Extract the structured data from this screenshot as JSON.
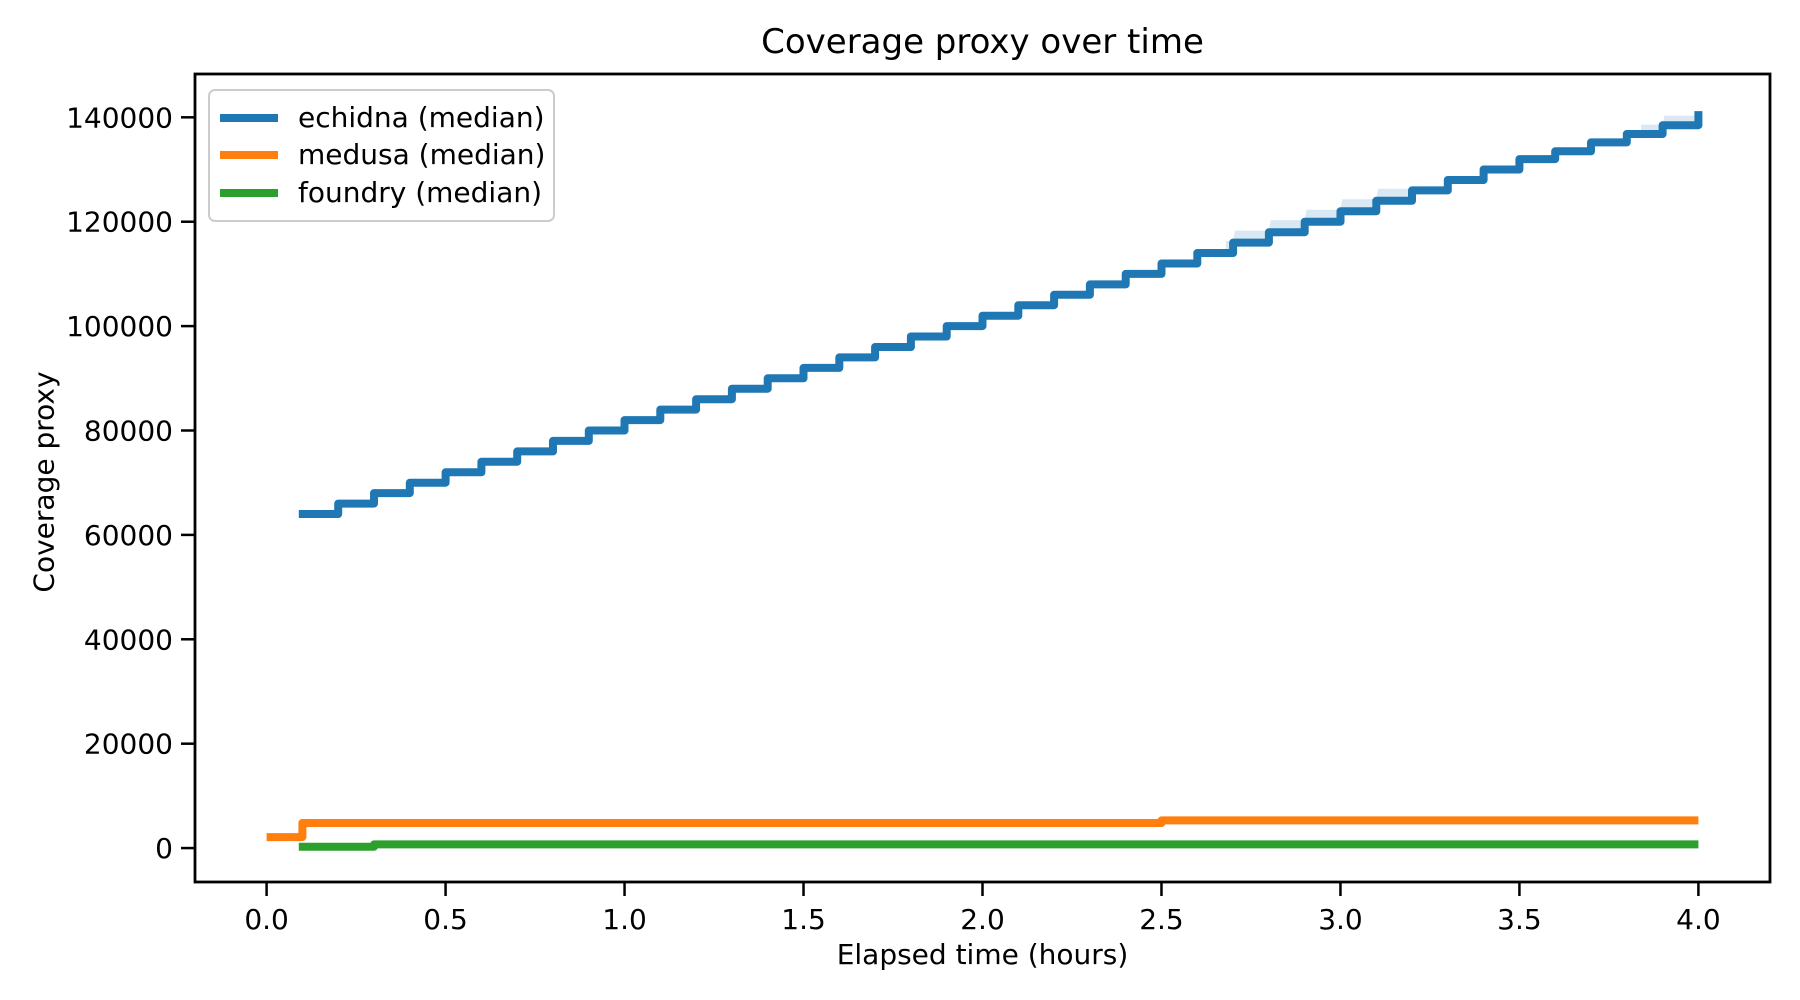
{
  "chart_data": {
    "type": "line",
    "title": "Coverage proxy over time",
    "xlabel": "Elapsed time (hours)",
    "ylabel": "Coverage proxy",
    "grid": false,
    "legend_position": "upper left",
    "step_mode": "post",
    "xlim": [
      -0.2,
      4.2
    ],
    "ylim": [
      -6500,
      148300
    ],
    "xticks": [
      0.0,
      0.5,
      1.0,
      1.5,
      2.0,
      2.5,
      3.0,
      3.5,
      4.0
    ],
    "xtick_labels": [
      "0.0",
      "0.5",
      "1.0",
      "1.5",
      "2.0",
      "2.5",
      "3.0",
      "3.5",
      "4.0"
    ],
    "yticks": [
      0,
      20000,
      40000,
      60000,
      80000,
      100000,
      120000,
      140000
    ],
    "ytick_labels": [
      "0",
      "20000",
      "40000",
      "60000",
      "80000",
      "100000",
      "120000",
      "140000"
    ],
    "axis_color": "#000000",
    "series": [
      {
        "name": "echidna (median)",
        "color": "#1f77b4",
        "points": [
          [
            0.09,
            64000
          ],
          [
            0.2,
            66000
          ],
          [
            0.3,
            68000
          ],
          [
            0.4,
            70000
          ],
          [
            0.5,
            72000
          ],
          [
            0.6,
            74000
          ],
          [
            0.7,
            76000
          ],
          [
            0.8,
            78000
          ],
          [
            0.9,
            80000
          ],
          [
            1.0,
            82000
          ],
          [
            1.1,
            84000
          ],
          [
            1.2,
            86000
          ],
          [
            1.3,
            88000
          ],
          [
            1.4,
            90000
          ],
          [
            1.5,
            92000
          ],
          [
            1.6,
            94000
          ],
          [
            1.7,
            96000
          ],
          [
            1.8,
            98000
          ],
          [
            1.9,
            100000
          ],
          [
            2.0,
            102000
          ],
          [
            2.1,
            104000
          ],
          [
            2.2,
            106000
          ],
          [
            2.3,
            108000
          ],
          [
            2.4,
            110000
          ],
          [
            2.5,
            112000
          ],
          [
            2.6,
            114000
          ],
          [
            2.7,
            116000
          ],
          [
            2.8,
            118000
          ],
          [
            2.9,
            120000
          ],
          [
            3.0,
            122000
          ],
          [
            3.1,
            124000
          ],
          [
            3.2,
            126000
          ],
          [
            3.3,
            128000
          ],
          [
            3.4,
            130000
          ],
          [
            3.5,
            132000
          ],
          [
            3.6,
            133500
          ],
          [
            3.7,
            135200
          ],
          [
            3.8,
            136800
          ],
          [
            3.9,
            138500
          ],
          [
            4.0,
            141200
          ]
        ]
      },
      {
        "name": "medusa (median)",
        "color": "#ff7f0e",
        "points": [
          [
            0.0,
            2100
          ],
          [
            0.1,
            4800
          ],
          [
            2.5,
            5300
          ],
          [
            4.0,
            5300
          ]
        ]
      },
      {
        "name": "foundry (median)",
        "color": "#2ca02c",
        "points": [
          [
            0.09,
            250
          ],
          [
            0.3,
            700
          ],
          [
            4.0,
            700
          ]
        ]
      }
    ],
    "bands": [
      {
        "series": "echidna (median)",
        "color": "#1f77b4",
        "opacity": 0.17,
        "t_start": 2.68,
        "t_end": 3.19,
        "upper_offset": 2300,
        "lower_offset": 700
      },
      {
        "series": "echidna (median)",
        "color": "#1f77b4",
        "opacity": 0.17,
        "t_start": 3.84,
        "t_end": 4.0,
        "upper_offset": 1800,
        "lower_offset": 400
      }
    ]
  }
}
